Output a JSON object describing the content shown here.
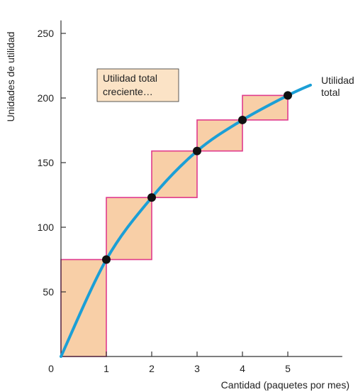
{
  "chart_data": {
    "type": "line",
    "xlabel": "Cantidad (paquetes por mes)",
    "ylabel": "Unidades de utilidad",
    "xlim": [
      0,
      6.2
    ],
    "ylim": [
      0,
      260
    ],
    "x_ticks": [
      0,
      1,
      2,
      3,
      4,
      5
    ],
    "y_ticks": [
      50,
      100,
      150,
      200,
      250
    ],
    "series": [
      {
        "name": "Utilidad total",
        "x": [
          0,
          1,
          2,
          3,
          4,
          5
        ],
        "y": [
          0,
          75,
          123,
          159,
          183,
          202
        ]
      }
    ],
    "curve_end": {
      "x": 5.5,
      "y": 210
    },
    "annotation_box": {
      "line1": "Utilidad total",
      "line2": "creciente…"
    },
    "curve_label": {
      "line1": "Utilidad",
      "line2": "total"
    },
    "colors": {
      "curve": "#1b9fd6",
      "step_fill": "#f8cfa7",
      "step_stroke": "#e03a8c",
      "point": "#111111",
      "annotation_fill": "#fbe3c6",
      "axis": "#333333"
    }
  }
}
